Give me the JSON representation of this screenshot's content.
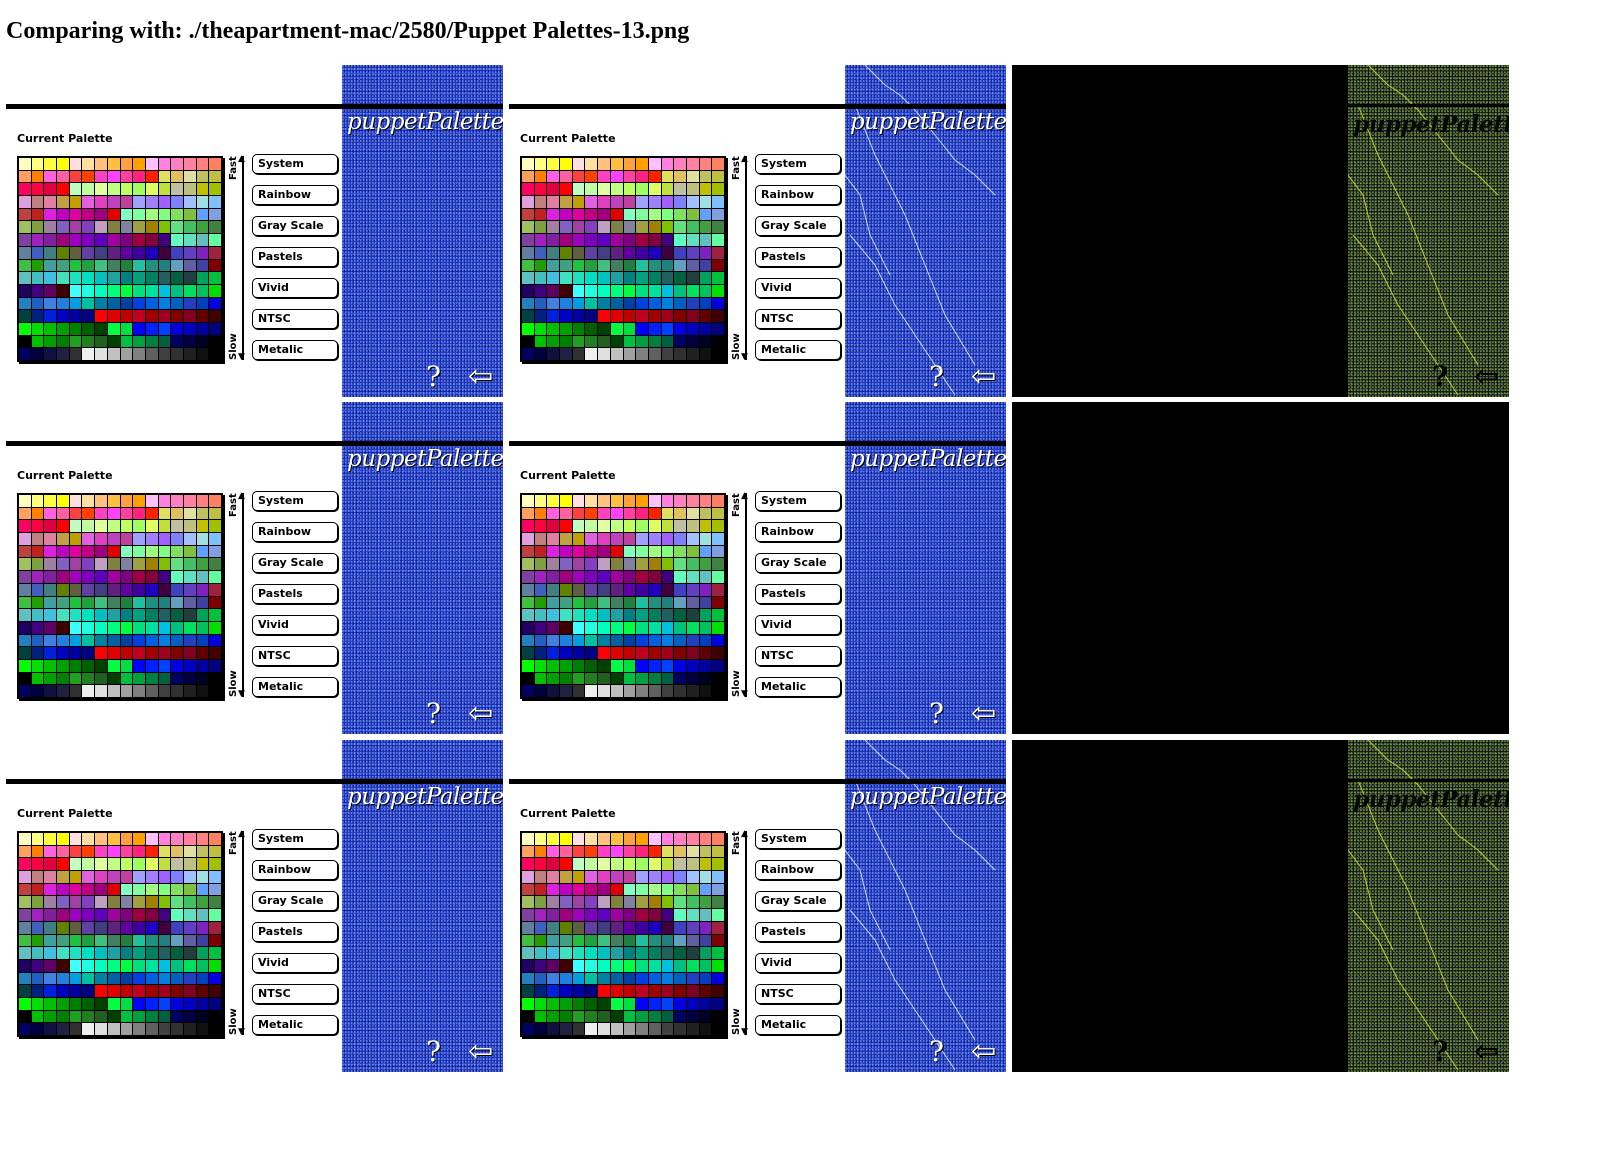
{
  "page": {
    "title": "Comparing with: ./theapartment-mac/2580/Puppet Palettes-13.png"
  },
  "app": {
    "logo": "puppetPalettes",
    "current_palette_label": "Current Palette",
    "speed_fast": "Fast",
    "speed_slow": "Slow",
    "help_glyph": "?",
    "back_glyph": "⇦",
    "buttons": [
      "System",
      "Rainbow",
      "Gray Scale",
      "Pastels",
      "Vivid",
      "NTSC",
      "Metalic"
    ]
  },
  "icons": {
    "help": "question-mark-icon",
    "back": "back-arrow-icon"
  },
  "colors": {
    "background_blue": "#1f3fd4",
    "bar": "#000000",
    "diff_background": "#000000",
    "diff_noise": "#c8dc28"
  },
  "palette": [
    "#ffffc0",
    "#ffff80",
    "#ffff40",
    "#ffff00",
    "#ffe0e0",
    "#ffe0a0",
    "#ffc080",
    "#ffc040",
    "#ffa040",
    "#ffa000",
    "#ffc0ff",
    "#ff80e0",
    "#ff80c0",
    "#ff80a0",
    "#ff8080",
    "#ff8060",
    "#ffa060",
    "#ff8000",
    "#ff60e0",
    "#ff60a0",
    "#ff4040",
    "#ff4000",
    "#ff40c0",
    "#ff40ff",
    "#ff40a0",
    "#ff2080",
    "#ff2000",
    "#e0e060",
    "#e0c060",
    "#e0e0a0",
    "#c0c060",
    "#c0c040",
    "#ff0060",
    "#ff0040",
    "#e00040",
    "#ff0000",
    "#c0ffc0",
    "#c0ffa0",
    "#e0ffa0",
    "#c0ff80",
    "#c0ff60",
    "#a0ff60",
    "#e0ff60",
    "#c0e040",
    "#c0c0a0",
    "#c0c080",
    "#c0c000",
    "#a0c000",
    "#e0a0e0",
    "#c08080",
    "#e080a0",
    "#c0a040",
    "#c0a000",
    "#e060e0",
    "#e040c0",
    "#c040c0",
    "#c040a0",
    "#a0a0ff",
    "#a080ff",
    "#a060ff",
    "#8080ff",
    "#a0c0ff",
    "#a0e0e0",
    "#80c0ff",
    "#c04040",
    "#c02020",
    "#e020e0",
    "#c000c0",
    "#e000a0",
    "#c00080",
    "#a00080",
    "#e00000",
    "#80ffc0",
    "#80ffa0",
    "#a0ff80",
    "#80ff80",
    "#80e060",
    "#80c040",
    "#60a0ff",
    "#80a0e0",
    "#a0c060",
    "#80a040",
    "#a080a0",
    "#8060c0",
    "#a040a0",
    "#8040c0",
    "#c0a0c0",
    "#808040",
    "#8080a0",
    "#a0a040",
    "#a08000",
    "#80c000",
    "#60e080",
    "#40c060",
    "#40a040",
    "#408040",
    "#8040a0",
    "#a020c0",
    "#8020a0",
    "#a00080",
    "#a000c0",
    "#8000c0",
    "#6000c0",
    "#a000a0",
    "#800080",
    "#a00040",
    "#800040",
    "#400080",
    "#60ffc0",
    "#60e0c0",
    "#60c0c0",
    "#60ffa0",
    "#6080a0",
    "#4060c0",
    "#408080",
    "#608000",
    "#606040",
    "#6040a0",
    "#404080",
    "#602080",
    "#6000a0",
    "#4000a0",
    "#2000c0",
    "#400040",
    "#4040c0",
    "#6040c0",
    "#8020c0",
    "#a02040",
    "#40c040",
    "#20a000",
    "#40a0a0",
    "#40a080",
    "#20c040",
    "#20a040",
    "#40c080",
    "#408060",
    "#208040",
    "#20c0a0",
    "#209080",
    "#208080",
    "#60a0c0",
    "#6060a0",
    "#4040a0",
    "#800000",
    "#60c0c0",
    "#40c0c0",
    "#40c0e0",
    "#40e0c0",
    "#20e0c0",
    "#00e0c0",
    "#00c0c0",
    "#20a0a0",
    "#008080",
    "#00a080",
    "#008060",
    "#206060",
    "#006040",
    "#204040",
    "#00a060",
    "#00c040",
    "#200060",
    "#400080",
    "#600060",
    "#400000",
    "#40ffff",
    "#20ffe0",
    "#00ffc0",
    "#00ff80",
    "#00ff40",
    "#00e080",
    "#00e0a0",
    "#00c0e0",
    "#00c080",
    "#00e060",
    "#00c060",
    "#00e000",
    "#2080c0",
    "#2060c0",
    "#4080e0",
    "#2080e0",
    "#00a0e0",
    "#00c0a0",
    "#0080a0",
    "#0060a0",
    "#0040a0",
    "#0040e0",
    "#0060e0",
    "#0080e0",
    "#0060c0",
    "#2040c0",
    "#0040c0",
    "#0000e0",
    "#004040",
    "#002080",
    "#0020e0",
    "#0000c0",
    "#0000a0",
    "#000080",
    "#ff0000",
    "#e00000",
    "#c00000",
    "#c00020",
    "#a00000",
    "#a00020",
    "#800000",
    "#800020",
    "#600000",
    "#400000",
    "#00ff00",
    "#00e000",
    "#00c000",
    "#00a000",
    "#008000",
    "#006000",
    "#004000",
    "#00ff40",
    "#00e040",
    "#0000ff",
    "#0020ff",
    "#0040ff",
    "#0000e0",
    "#0000c0",
    "#0000a0",
    "#000080",
    "#000000",
    "#00c000",
    "#00a000",
    "#008000",
    "#20a020",
    "#208020",
    "#206020",
    "#004000",
    "#00c040",
    "#00a040",
    "#008040",
    "#006040",
    "#000060",
    "#000040",
    "#000020",
    "#000000",
    "#000060",
    "#000040",
    "#101040",
    "#202040",
    "#303030",
    "#f0f0f0",
    "#e0e0e0",
    "#c0c0c0",
    "#a0a0a0",
    "#808080",
    "#606060",
    "#404040",
    "#303030",
    "#202020",
    "#101010",
    "#000000"
  ]
}
